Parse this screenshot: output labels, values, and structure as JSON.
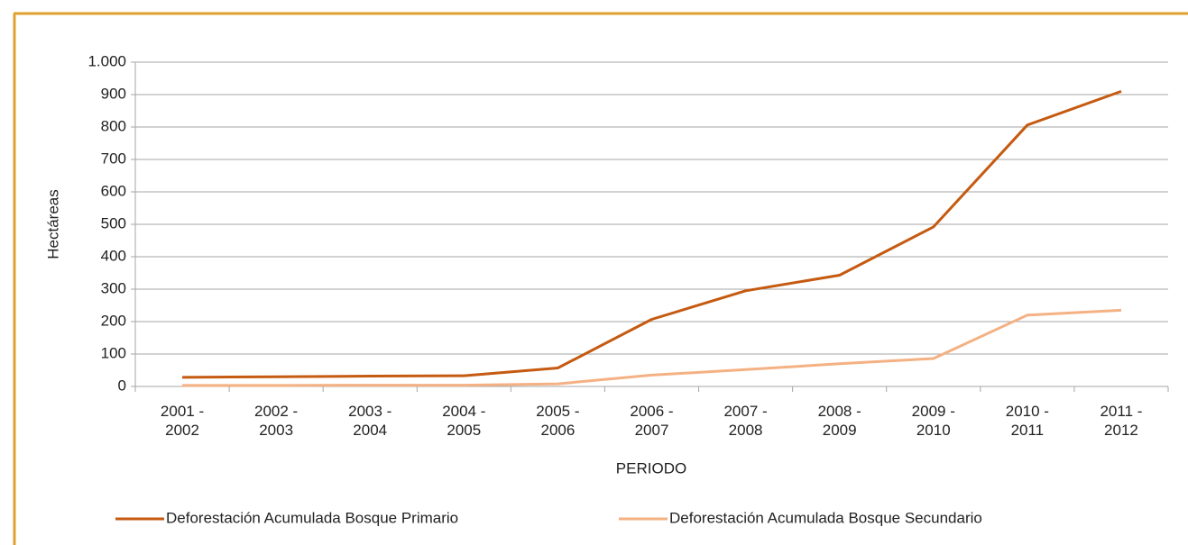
{
  "chart_data": {
    "type": "line",
    "y_label": "Hectáreas",
    "x_label": "PERIODO",
    "categories": [
      "2001 - 2002",
      "2002 - 2003",
      "2003 - 2004",
      "2004 - 2005",
      "2005 - 2006",
      "2006 - 2007",
      "2007 - 2008",
      "2008 - 2009",
      "2009 - 2010",
      "2010 - 2011",
      "2011 - 2012"
    ],
    "series": [
      {
        "name": "Deforestación Acumulada Bosque Primario",
        "color": "#c55a11",
        "values": [
          28,
          30,
          32,
          33,
          57,
          207,
          295,
          343,
          492,
          806,
          910
        ]
      },
      {
        "name": "Deforestación Acumulada Bosque Secundario",
        "color": "#f4b183",
        "values": [
          3,
          3,
          4,
          4,
          8,
          35,
          52,
          70,
          86,
          220,
          235
        ]
      }
    ],
    "ylim": [
      0,
      1000
    ],
    "yticks": [
      0,
      100,
      200,
      300,
      400,
      500,
      600,
      700,
      800,
      900,
      {
        "value": 1000,
        "label": "1.000"
      }
    ],
    "grid": true,
    "legend": "bottom"
  }
}
